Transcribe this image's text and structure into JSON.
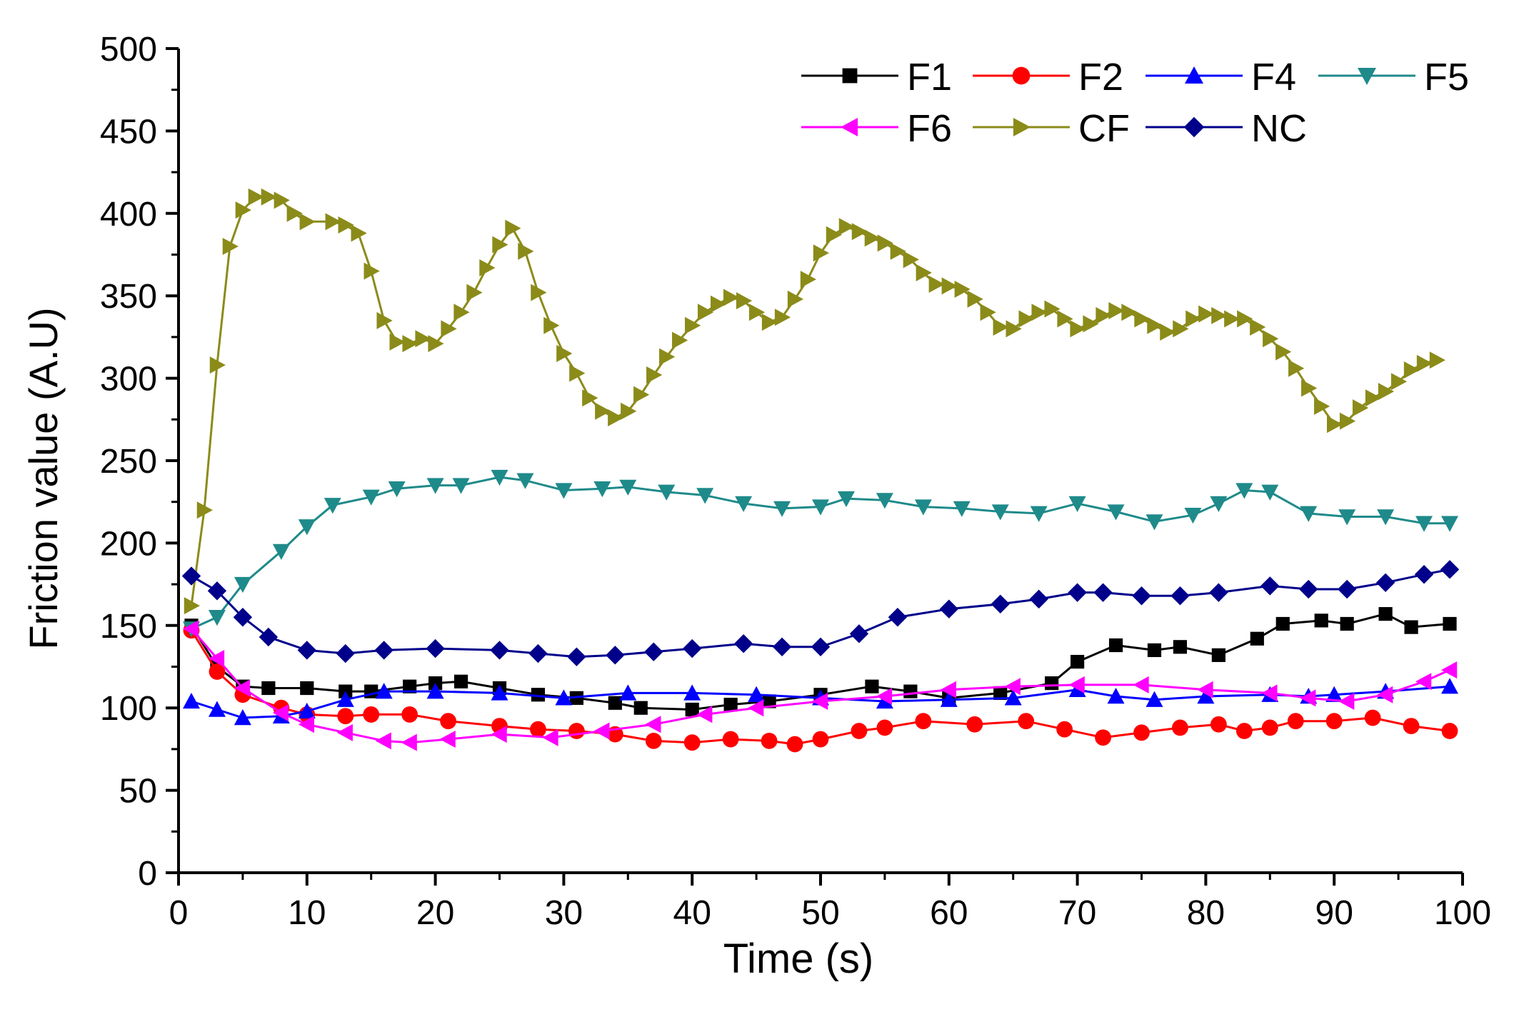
{
  "chart_data": {
    "type": "line",
    "title": "",
    "xlabel": "Time (s)",
    "ylabel": "Friction value (A.U)",
    "xlim": [
      0,
      100
    ],
    "ylim": [
      0,
      500
    ],
    "x_ticks": [
      0,
      10,
      20,
      30,
      40,
      50,
      60,
      70,
      80,
      90,
      100
    ],
    "y_ticks": [
      0,
      50,
      100,
      150,
      200,
      250,
      300,
      350,
      400,
      450,
      500
    ],
    "legend_position": "top-right",
    "series": [
      {
        "name": "F1",
        "color": "#000000",
        "marker": "square",
        "points": [
          [
            1,
            150
          ],
          [
            3,
            125
          ],
          [
            5,
            113
          ],
          [
            7,
            112
          ],
          [
            10,
            112
          ],
          [
            13,
            110
          ],
          [
            15,
            110
          ],
          [
            18,
            113
          ],
          [
            20,
            115
          ],
          [
            22,
            116
          ],
          [
            25,
            112
          ],
          [
            28,
            108
          ],
          [
            31,
            106
          ],
          [
            34,
            103
          ],
          [
            36,
            100
          ],
          [
            40,
            99
          ],
          [
            43,
            102
          ],
          [
            46,
            104
          ],
          [
            50,
            108
          ],
          [
            54,
            113
          ],
          [
            57,
            110
          ],
          [
            60,
            106
          ],
          [
            64,
            109
          ],
          [
            68,
            115
          ],
          [
            70,
            128
          ],
          [
            73,
            138
          ],
          [
            76,
            135
          ],
          [
            78,
            137
          ],
          [
            81,
            132
          ],
          [
            84,
            142
          ],
          [
            86,
            151
          ],
          [
            89,
            153
          ],
          [
            91,
            151
          ],
          [
            94,
            157
          ],
          [
            96,
            149
          ],
          [
            99,
            151
          ]
        ]
      },
      {
        "name": "F2",
        "color": "#ff0000",
        "marker": "circle",
        "points": [
          [
            1,
            147
          ],
          [
            3,
            122
          ],
          [
            5,
            108
          ],
          [
            8,
            100
          ],
          [
            10,
            96
          ],
          [
            13,
            95
          ],
          [
            15,
            96
          ],
          [
            18,
            96
          ],
          [
            21,
            92
          ],
          [
            25,
            89
          ],
          [
            28,
            87
          ],
          [
            31,
            86
          ],
          [
            34,
            84
          ],
          [
            37,
            80
          ],
          [
            40,
            79
          ],
          [
            43,
            81
          ],
          [
            46,
            80
          ],
          [
            48,
            78
          ],
          [
            50,
            81
          ],
          [
            53,
            86
          ],
          [
            55,
            88
          ],
          [
            58,
            92
          ],
          [
            62,
            90
          ],
          [
            66,
            92
          ],
          [
            69,
            87
          ],
          [
            72,
            82
          ],
          [
            75,
            85
          ],
          [
            78,
            88
          ],
          [
            81,
            90
          ],
          [
            83,
            86
          ],
          [
            85,
            88
          ],
          [
            87,
            92
          ],
          [
            90,
            92
          ],
          [
            93,
            94
          ],
          [
            96,
            89
          ],
          [
            99,
            86
          ]
        ]
      },
      {
        "name": "F4",
        "color": "#0000ff",
        "marker": "triangle-up",
        "points": [
          [
            1,
            104
          ],
          [
            3,
            99
          ],
          [
            5,
            94
          ],
          [
            8,
            95
          ],
          [
            10,
            98
          ],
          [
            13,
            105
          ],
          [
            16,
            110
          ],
          [
            20,
            110
          ],
          [
            25,
            109
          ],
          [
            30,
            106
          ],
          [
            35,
            109
          ],
          [
            40,
            109
          ],
          [
            45,
            108
          ],
          [
            50,
            106
          ],
          [
            55,
            104
          ],
          [
            60,
            105
          ],
          [
            65,
            106
          ],
          [
            70,
            111
          ],
          [
            73,
            107
          ],
          [
            76,
            105
          ],
          [
            80,
            107
          ],
          [
            85,
            108
          ],
          [
            88,
            107
          ],
          [
            90,
            108
          ],
          [
            94,
            110
          ],
          [
            99,
            113
          ]
        ]
      },
      {
        "name": "F5",
        "color": "#1f8a8a",
        "marker": "triangle-down",
        "points": [
          [
            1,
            148
          ],
          [
            3,
            155
          ],
          [
            5,
            175
          ],
          [
            8,
            195
          ],
          [
            10,
            210
          ],
          [
            12,
            223
          ],
          [
            15,
            228
          ],
          [
            17,
            233
          ],
          [
            20,
            235
          ],
          [
            22,
            235
          ],
          [
            25,
            240
          ],
          [
            27,
            238
          ],
          [
            30,
            232
          ],
          [
            33,
            233
          ],
          [
            35,
            234
          ],
          [
            38,
            231
          ],
          [
            41,
            229
          ],
          [
            44,
            224
          ],
          [
            47,
            221
          ],
          [
            50,
            222
          ],
          [
            52,
            227
          ],
          [
            55,
            226
          ],
          [
            58,
            222
          ],
          [
            61,
            221
          ],
          [
            64,
            219
          ],
          [
            67,
            218
          ],
          [
            70,
            224
          ],
          [
            73,
            219
          ],
          [
            76,
            213
          ],
          [
            79,
            217
          ],
          [
            81,
            224
          ],
          [
            83,
            232
          ],
          [
            85,
            231
          ],
          [
            88,
            218
          ],
          [
            91,
            216
          ],
          [
            94,
            216
          ],
          [
            97,
            212
          ],
          [
            99,
            212
          ]
        ]
      },
      {
        "name": "F6",
        "color": "#ff00ff",
        "marker": "triangle-left",
        "points": [
          [
            1,
            148
          ],
          [
            3,
            130
          ],
          [
            5,
            112
          ],
          [
            8,
            97
          ],
          [
            10,
            90
          ],
          [
            13,
            85
          ],
          [
            16,
            80
          ],
          [
            18,
            79
          ],
          [
            21,
            81
          ],
          [
            25,
            84
          ],
          [
            29,
            82
          ],
          [
            33,
            86
          ],
          [
            37,
            90
          ],
          [
            41,
            96
          ],
          [
            45,
            100
          ],
          [
            50,
            104
          ],
          [
            55,
            107
          ],
          [
            60,
            111
          ],
          [
            65,
            113
          ],
          [
            70,
            114
          ],
          [
            75,
            114
          ],
          [
            80,
            111
          ],
          [
            85,
            109
          ],
          [
            88,
            106
          ],
          [
            91,
            104
          ],
          [
            94,
            108
          ],
          [
            97,
            116
          ],
          [
            99,
            123
          ]
        ]
      },
      {
        "name": "CF",
        "color": "#8b8b1a",
        "marker": "triangle-right",
        "points": [
          [
            1,
            162
          ],
          [
            2,
            220
          ],
          [
            3,
            308
          ],
          [
            4,
            380
          ],
          [
            5,
            402
          ],
          [
            6,
            410
          ],
          [
            7,
            410
          ],
          [
            8,
            408
          ],
          [
            9,
            400
          ],
          [
            10,
            395
          ],
          [
            12,
            395
          ],
          [
            13,
            393
          ],
          [
            14,
            388
          ],
          [
            15,
            365
          ],
          [
            16,
            335
          ],
          [
            17,
            322
          ],
          [
            18,
            321
          ],
          [
            19,
            324
          ],
          [
            20,
            321
          ],
          [
            21,
            330
          ],
          [
            22,
            340
          ],
          [
            23,
            352
          ],
          [
            24,
            367
          ],
          [
            25,
            381
          ],
          [
            26,
            391
          ],
          [
            27,
            377
          ],
          [
            28,
            352
          ],
          [
            29,
            332
          ],
          [
            30,
            315
          ],
          [
            31,
            303
          ],
          [
            32,
            288
          ],
          [
            33,
            280
          ],
          [
            34,
            276
          ],
          [
            35,
            280
          ],
          [
            36,
            290
          ],
          [
            37,
            302
          ],
          [
            38,
            313
          ],
          [
            39,
            323
          ],
          [
            40,
            332
          ],
          [
            41,
            340
          ],
          [
            42,
            345
          ],
          [
            43,
            349
          ],
          [
            44,
            347
          ],
          [
            45,
            340
          ],
          [
            46,
            334
          ],
          [
            47,
            337
          ],
          [
            48,
            348
          ],
          [
            49,
            360
          ],
          [
            50,
            376
          ],
          [
            51,
            387
          ],
          [
            52,
            392
          ],
          [
            53,
            389
          ],
          [
            54,
            385
          ],
          [
            55,
            382
          ],
          [
            56,
            377
          ],
          [
            57,
            372
          ],
          [
            58,
            364
          ],
          [
            59,
            357
          ],
          [
            60,
            356
          ],
          [
            61,
            354
          ],
          [
            62,
            348
          ],
          [
            63,
            340
          ],
          [
            64,
            331
          ],
          [
            65,
            330
          ],
          [
            66,
            336
          ],
          [
            67,
            340
          ],
          [
            68,
            342
          ],
          [
            69,
            336
          ],
          [
            70,
            330
          ],
          [
            71,
            333
          ],
          [
            72,
            338
          ],
          [
            73,
            341
          ],
          [
            74,
            340
          ],
          [
            75,
            336
          ],
          [
            76,
            332
          ],
          [
            77,
            328
          ],
          [
            78,
            330
          ],
          [
            79,
            336
          ],
          [
            80,
            339
          ],
          [
            81,
            338
          ],
          [
            82,
            336
          ],
          [
            83,
            336
          ],
          [
            84,
            331
          ],
          [
            85,
            324
          ],
          [
            86,
            316
          ],
          [
            87,
            306
          ],
          [
            88,
            294
          ],
          [
            89,
            283
          ],
          [
            90,
            272
          ],
          [
            91,
            274
          ],
          [
            92,
            282
          ],
          [
            93,
            288
          ],
          [
            94,
            292
          ],
          [
            95,
            298
          ],
          [
            96,
            305
          ],
          [
            97,
            309
          ],
          [
            98,
            311
          ]
        ]
      },
      {
        "name": "NC",
        "color": "#00008b",
        "marker": "diamond",
        "points": [
          [
            1,
            180
          ],
          [
            3,
            171
          ],
          [
            5,
            155
          ],
          [
            7,
            143
          ],
          [
            10,
            135
          ],
          [
            13,
            133
          ],
          [
            16,
            135
          ],
          [
            20,
            136
          ],
          [
            25,
            135
          ],
          [
            28,
            133
          ],
          [
            31,
            131
          ],
          [
            34,
            132
          ],
          [
            37,
            134
          ],
          [
            40,
            136
          ],
          [
            44,
            139
          ],
          [
            47,
            137
          ],
          [
            50,
            137
          ],
          [
            53,
            145
          ],
          [
            56,
            155
          ],
          [
            60,
            160
          ],
          [
            64,
            163
          ],
          [
            67,
            166
          ],
          [
            70,
            170
          ],
          [
            72,
            170
          ],
          [
            75,
            168
          ],
          [
            78,
            168
          ],
          [
            81,
            170
          ],
          [
            85,
            174
          ],
          [
            88,
            172
          ],
          [
            91,
            172
          ],
          [
            94,
            176
          ],
          [
            97,
            181
          ],
          [
            99,
            184
          ]
        ]
      }
    ]
  }
}
